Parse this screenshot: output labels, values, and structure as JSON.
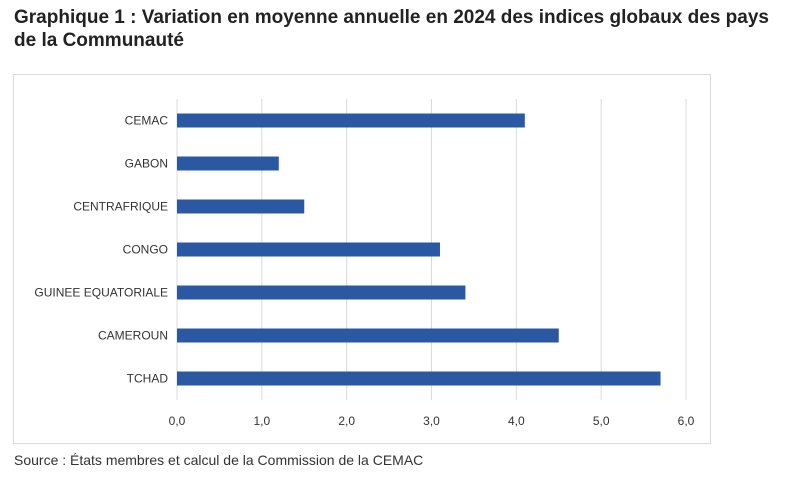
{
  "title": "Graphique 1 : Variation en moyenne annuelle en 2024 des indices globaux des pays de la Communauté",
  "source": "Source : États membres et calcul de la Commission de la CEMAC",
  "colors": {
    "bar": "#2a58a3",
    "grid": "#d9d9d9",
    "text": "#333333"
  },
  "chart_data": {
    "type": "bar",
    "orientation": "horizontal",
    "categories": [
      "CEMAC",
      "GABON",
      "CENTRAFRIQUE",
      "CONGO",
      "GUINEE EQUATORIALE",
      "CAMEROUN",
      "TCHAD"
    ],
    "values": [
      4.1,
      1.2,
      1.5,
      3.1,
      3.4,
      4.5,
      5.7
    ],
    "xlabel": "",
    "ylabel": "",
    "xlim": [
      0,
      6
    ],
    "xticks": [
      0,
      1,
      2,
      3,
      4,
      5,
      6
    ],
    "xtick_labels": [
      "0,0",
      "1,0",
      "2,0",
      "3,0",
      "4,0",
      "5,0",
      "6,0"
    ],
    "grid": true,
    "legend": "none"
  }
}
